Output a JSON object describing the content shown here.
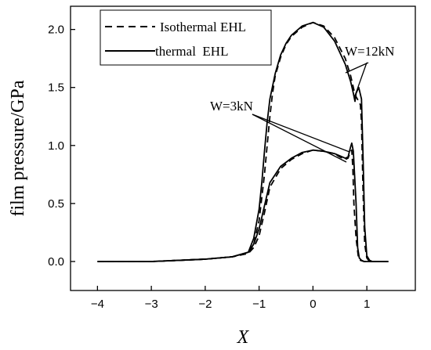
{
  "chart_data": {
    "type": "line",
    "xlabel": "X",
    "ylabel": "film pressure/GPa",
    "xlim": [
      -4.5,
      1.9
    ],
    "ylim": [
      -0.25,
      2.2
    ],
    "xticks": [
      -4,
      -3,
      -2,
      -1,
      0,
      1
    ],
    "yticks": [
      0.0,
      0.5,
      1.0,
      1.5,
      2.0
    ],
    "xtick_labels": [
      "−4",
      "−3",
      "−2",
      "−1",
      "0",
      "1"
    ],
    "ytick_labels": [
      "0.0",
      "0.5",
      "1.0",
      "1.5",
      "2.0"
    ],
    "grid": false,
    "legend": {
      "placement": "top-left",
      "entries": [
        {
          "label": "Isothermal EHL",
          "style": "dashed"
        },
        {
          "label": "thermal  EHL",
          "style": "solid"
        }
      ]
    },
    "annotations": [
      {
        "text": "W=12kN"
      },
      {
        "text": "W=3kN"
      }
    ],
    "series": [
      {
        "group": "W=12kN",
        "style": "solid",
        "x": [
          -4.0,
          -3.0,
          -2.0,
          -1.5,
          -1.2,
          -1.1,
          -1.0,
          -0.95,
          -0.9,
          -0.85,
          -0.8,
          -0.7,
          -0.6,
          -0.5,
          -0.4,
          -0.2,
          0.0,
          0.2,
          0.4,
          0.6,
          0.7,
          0.75,
          0.78,
          0.8,
          0.85,
          0.9,
          0.93,
          0.96,
          1.0,
          1.05,
          1.1,
          1.2,
          1.4
        ],
        "y": [
          0.0,
          0.0,
          0.02,
          0.04,
          0.08,
          0.2,
          0.45,
          0.68,
          0.95,
          1.2,
          1.4,
          1.62,
          1.78,
          1.88,
          1.95,
          2.03,
          2.06,
          2.02,
          1.9,
          1.7,
          1.55,
          1.45,
          1.38,
          1.45,
          1.5,
          1.4,
          0.9,
          0.3,
          0.05,
          0.01,
          0.0,
          0.0,
          0.0
        ]
      },
      {
        "group": "W=12kN",
        "style": "dashed",
        "x": [
          -4.0,
          -3.0,
          -2.0,
          -1.5,
          -1.2,
          -1.1,
          -1.0,
          -0.9,
          -0.85,
          -0.8,
          -0.75,
          -0.7,
          -0.6,
          -0.5,
          -0.4,
          -0.2,
          0.0,
          0.2,
          0.4,
          0.6,
          0.7,
          0.76,
          0.8,
          0.85,
          0.88,
          0.9,
          0.93,
          0.96,
          1.0,
          1.05,
          1.1,
          1.2,
          1.4
        ],
        "y": [
          0.0,
          0.0,
          0.02,
          0.04,
          0.07,
          0.15,
          0.35,
          0.75,
          1.0,
          1.25,
          1.45,
          1.6,
          1.76,
          1.87,
          1.94,
          2.02,
          2.06,
          2.03,
          1.93,
          1.75,
          1.6,
          1.48,
          1.42,
          1.38,
          1.35,
          1.2,
          0.6,
          0.15,
          0.03,
          0.0,
          0.0,
          0.0,
          0.0
        ]
      },
      {
        "group": "W=3kN",
        "style": "solid",
        "x": [
          -4.0,
          -3.0,
          -2.0,
          -1.5,
          -1.2,
          -1.1,
          -1.0,
          -0.9,
          -0.8,
          -0.6,
          -0.4,
          -0.2,
          0.0,
          0.2,
          0.4,
          0.5,
          0.6,
          0.65,
          0.7,
          0.72,
          0.75,
          0.8,
          0.83,
          0.86,
          0.9,
          0.95,
          1.0,
          1.1,
          1.2,
          1.4
        ],
        "y": [
          0.0,
          0.0,
          0.02,
          0.04,
          0.08,
          0.15,
          0.28,
          0.48,
          0.68,
          0.82,
          0.89,
          0.94,
          0.96,
          0.95,
          0.93,
          0.91,
          0.89,
          0.9,
          0.99,
          1.02,
          0.95,
          0.5,
          0.12,
          0.03,
          0.01,
          0.0,
          0.0,
          0.0,
          0.0,
          0.0
        ]
      },
      {
        "group": "W=3kN",
        "style": "dashed",
        "x": [
          -4.0,
          -3.0,
          -2.0,
          -1.5,
          -1.2,
          -1.1,
          -1.0,
          -0.9,
          -0.8,
          -0.6,
          -0.4,
          -0.2,
          0.0,
          0.2,
          0.4,
          0.5,
          0.6,
          0.65,
          0.7,
          0.72,
          0.74,
          0.76,
          0.8,
          0.84,
          0.88,
          0.95,
          1.0,
          1.1,
          1.2,
          1.4
        ],
        "y": [
          0.0,
          0.0,
          0.02,
          0.04,
          0.07,
          0.12,
          0.22,
          0.42,
          0.64,
          0.8,
          0.88,
          0.93,
          0.96,
          0.95,
          0.93,
          0.9,
          0.88,
          0.89,
          0.95,
          0.96,
          0.8,
          0.5,
          0.2,
          0.05,
          0.01,
          0.0,
          0.0,
          0.0,
          0.0,
          0.0
        ]
      }
    ]
  }
}
